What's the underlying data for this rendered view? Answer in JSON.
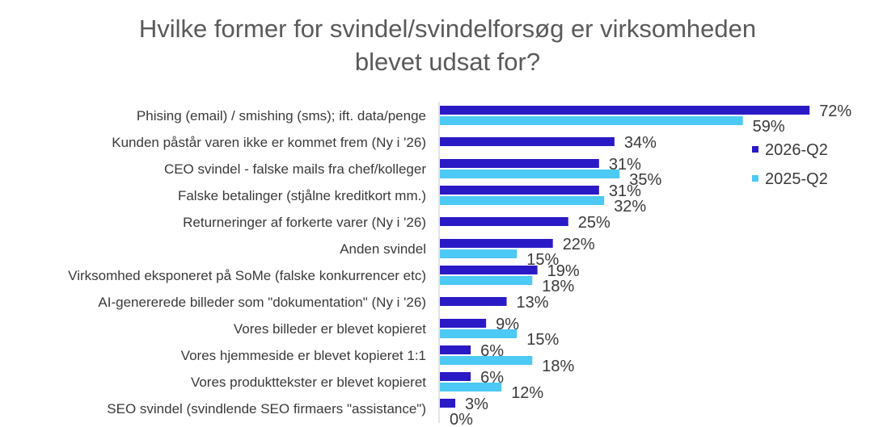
{
  "chart_data": {
    "type": "bar",
    "orientation": "horizontal",
    "title_lines": [
      "Hvilke former for svindel/svindelforsøg er virksomheden",
      "blevet udsat for?"
    ],
    "categories": [
      "Phising (email) / smishing (sms); ift. data/penge",
      "Kunden påstår varen ikke er kommet frem (Ny i '26)",
      "CEO svindel - falske mails fra chef/kolleger",
      "Falske betalinger (stjålne kreditkort mm.)",
      "Returneringer af forkerte varer (Ny i '26)",
      "Anden svindel",
      "Virksomhed eksponeret på SoMe (falske konkurrencer etc)",
      "AI-genererede billeder som \"dokumentation\" (Ny i '26)",
      "Vores billeder er blevet kopieret",
      "Vores hjemmeside er blevet kopieret 1:1",
      "Vores produkttekster er blevet kopieret",
      "SEO svindel (svindlende SEO firmaers \"assistance\")"
    ],
    "series": [
      {
        "name": "2026-Q2",
        "color": "#2a1ac6",
        "values": [
          72,
          34,
          31,
          31,
          25,
          22,
          19,
          13,
          9,
          6,
          6,
          3
        ],
        "labels": [
          "72%",
          "34%",
          "31%",
          "31%",
          "25%",
          "22%",
          "19%",
          "13%",
          "9%",
          "6%",
          "6%",
          "3%"
        ]
      },
      {
        "name": "2025-Q2",
        "color": "#4cc9f5",
        "values": [
          59,
          null,
          35,
          32,
          null,
          15,
          18,
          null,
          15,
          18,
          12,
          0
        ],
        "labels": [
          "59%",
          "",
          "35%",
          "32%",
          "",
          "15%",
          "18%",
          "",
          "15%",
          "18%",
          "12%",
          "0%"
        ]
      }
    ],
    "legend": [
      "2026-Q2",
      "2025-Q2"
    ],
    "legend_position": "right",
    "label_color": "#3a3a3a",
    "axis_color": "#c8c8c8"
  }
}
